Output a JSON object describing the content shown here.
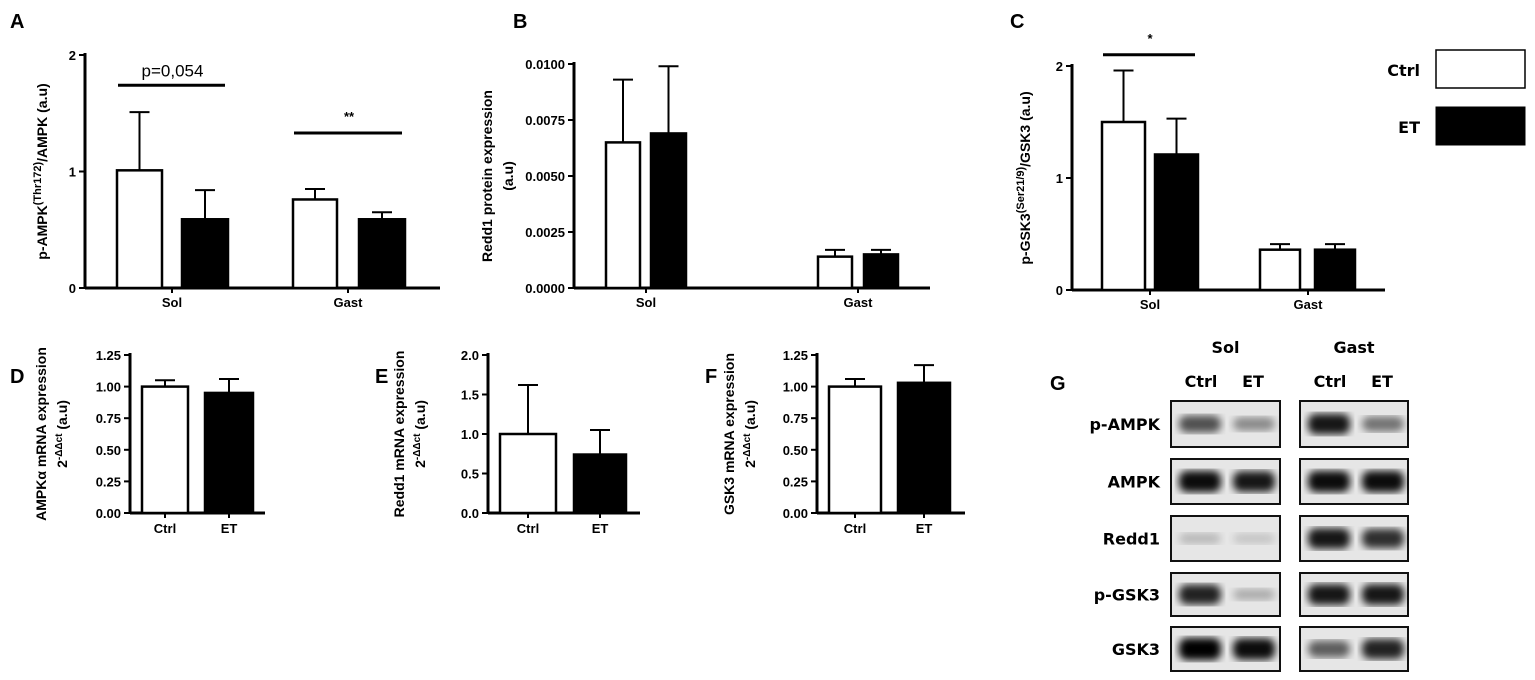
{
  "colors": {
    "ctrl": "#ffffff",
    "et": "#000000",
    "stroke": "#000000"
  },
  "legend": {
    "ctrl": "Ctrl",
    "et": "ET"
  },
  "chart_data": [
    {
      "panel": "A",
      "type": "bar",
      "ylabel_main": "p-AMPK",
      "ylabel_sup": "(Thr172)",
      "ylabel_rest": "/AMPK (a.u)",
      "ylim": [
        0,
        2
      ],
      "yticks": [
        "0",
        "1",
        "2"
      ],
      "ytick_values": [
        0,
        1,
        2
      ],
      "categories": [
        "Sol",
        "Gast"
      ],
      "series": [
        {
          "name": "Ctrl",
          "values": [
            1.01,
            0.76
          ],
          "errors": [
            0.5,
            0.09
          ]
        },
        {
          "name": "ET",
          "values": [
            0.59,
            0.59
          ],
          "errors": [
            0.25,
            0.06
          ]
        }
      ],
      "annotations": [
        {
          "category": "Sol",
          "text": "p=0,054",
          "y": 1.74
        },
        {
          "category": "Gast",
          "text": "**",
          "y": 1.33
        }
      ]
    },
    {
      "panel": "B",
      "type": "bar",
      "ylabel_main": "Redd1 protein expression",
      "ylabel_line2": "(a.u)",
      "ylim": [
        0,
        0.01
      ],
      "yticks": [
        "0.0000",
        "0.0025",
        "0.0050",
        "0.0075",
        "0.0100"
      ],
      "ytick_values": [
        0,
        0.0025,
        0.005,
        0.0075,
        0.01
      ],
      "categories": [
        "Sol",
        "Gast"
      ],
      "series": [
        {
          "name": "Ctrl",
          "values": [
            0.0065,
            0.0014
          ],
          "errors": [
            0.0028,
            0.0003
          ]
        },
        {
          "name": "ET",
          "values": [
            0.0069,
            0.0015
          ],
          "errors": [
            0.003,
            0.0002
          ]
        }
      ],
      "annotations": []
    },
    {
      "panel": "C",
      "type": "bar",
      "ylabel_main": "p-GSK3",
      "ylabel_sup": "(Ser21/9)",
      "ylabel_rest": "/GSK3 (a.u)",
      "ylim": [
        0,
        2
      ],
      "yticks": [
        "0",
        "1",
        "2"
      ],
      "ytick_values": [
        0,
        1,
        2
      ],
      "categories": [
        "Sol",
        "Gast"
      ],
      "series": [
        {
          "name": "Ctrl",
          "values": [
            1.5,
            0.36
          ],
          "errors": [
            0.46,
            0.05
          ]
        },
        {
          "name": "ET",
          "values": [
            1.21,
            0.36
          ],
          "errors": [
            0.32,
            0.05
          ]
        }
      ],
      "annotations": [
        {
          "category": "Sol",
          "text": "*",
          "y": 2.1
        }
      ]
    },
    {
      "panel": "D",
      "type": "bar",
      "ylabel_main": "AMPKα mRNA expression",
      "ylabel_line2": "2-ΔΔct (a.u)",
      "ylim": [
        0,
        1.25
      ],
      "yticks": [
        "0.00",
        "0.25",
        "0.50",
        "0.75",
        "1.00",
        "1.25"
      ],
      "ytick_values": [
        0,
        0.25,
        0.5,
        0.75,
        1,
        1.25
      ],
      "categories": [
        "Ctrl",
        "ET"
      ],
      "values": [
        1.0,
        0.95
      ],
      "errors": [
        0.05,
        0.11
      ]
    },
    {
      "panel": "E",
      "type": "bar",
      "ylabel_main": "Redd1 mRNA expression",
      "ylabel_line2": "2-ΔΔct (a.u)",
      "ylim": [
        0,
        2
      ],
      "yticks": [
        "0.0",
        "0.5",
        "1.0",
        "1.5",
        "2.0"
      ],
      "ytick_values": [
        0,
        0.5,
        1,
        1.5,
        2
      ],
      "categories": [
        "Ctrl",
        "ET"
      ],
      "values": [
        1.0,
        0.74
      ],
      "errors": [
        0.62,
        0.31
      ]
    },
    {
      "panel": "F",
      "type": "bar",
      "ylabel_main": "GSK3 mRNA expression",
      "ylabel_line2": "2-ΔΔct (a.u)",
      "ylim": [
        0,
        1.25
      ],
      "yticks": [
        "0.00",
        "0.25",
        "0.50",
        "0.75",
        "1.00",
        "1.25"
      ],
      "ytick_values": [
        0,
        0.25,
        0.5,
        0.75,
        1,
        1.25
      ],
      "categories": [
        "Ctrl",
        "ET"
      ],
      "values": [
        1.0,
        1.03
      ],
      "errors": [
        0.06,
        0.14
      ]
    }
  ],
  "blot": {
    "panel": "G",
    "groups": [
      "Sol",
      "Gast"
    ],
    "lanes": [
      "Ctrl",
      "ET"
    ],
    "proteins": [
      "p-AMPK",
      "AMPK",
      "Redd1",
      "p-GSK3",
      "GSK3"
    ]
  }
}
